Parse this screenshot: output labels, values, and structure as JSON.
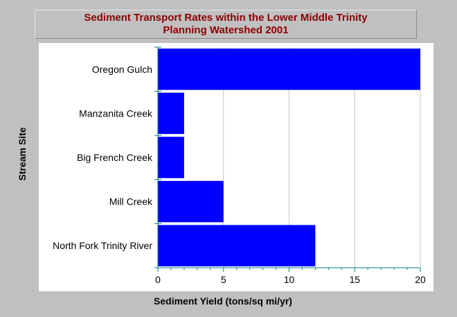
{
  "chart_data": {
    "type": "bar",
    "orientation": "horizontal",
    "title_lines": [
      "Sediment Transport Rates within the Lower Middle Trinity",
      "Planning Watershed 2001"
    ],
    "xlabel": "Sediment Yield (tons/sq mi/yr)",
    "ylabel": "Stream Site",
    "categories": [
      "Oregon Gulch",
      "Manzanita Creek",
      "Big French Creek",
      "Mill Creek",
      "North Fork Trinity River"
    ],
    "values": [
      20,
      2,
      2,
      5,
      12
    ],
    "xlim": [
      0,
      20
    ],
    "xticks": [
      0,
      5,
      10,
      15,
      20
    ],
    "grid": "vertical",
    "colors": {
      "bar": "#0000ff",
      "axis": "#008080",
      "grid": "#c8c8c8",
      "title": "#8b0000",
      "background": "#c0c0c0",
      "plot_background": "#ffffff"
    }
  }
}
